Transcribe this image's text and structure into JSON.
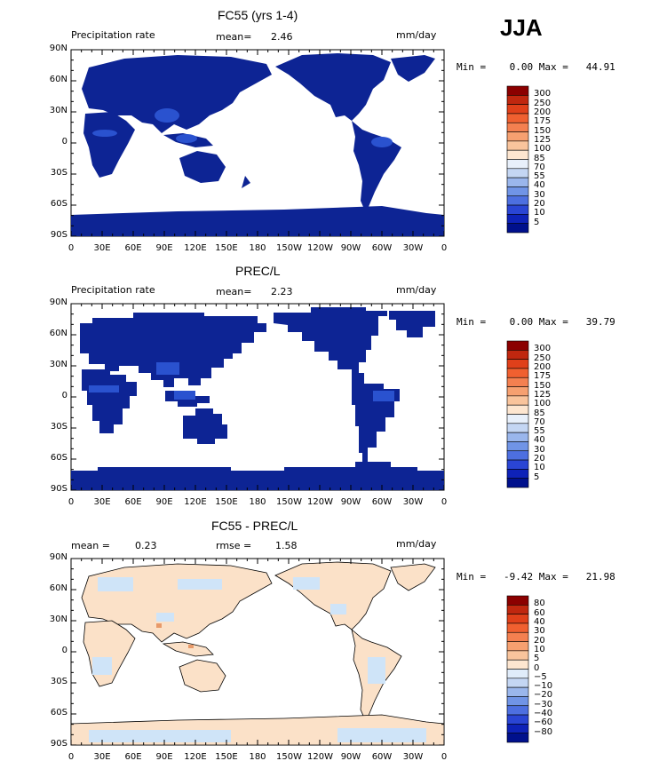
{
  "season": "JJA",
  "lon_labels": [
    "0",
    "30E",
    "60E",
    "90E",
    "120E",
    "150E",
    "180",
    "150W",
    "120W",
    "90W",
    "60W",
    "30W",
    "0"
  ],
  "lat_labels": [
    "90N",
    "60N",
    "30N",
    "0",
    "30S",
    "60S",
    "90S"
  ],
  "colors": {
    "ocean": "#ffffff",
    "land_low": "#0a1f8f",
    "land_mid": "#1a3fb8",
    "land_high": "#2f62d9",
    "diff_pos": "#fbe1c8",
    "diff_neg": "#cfe4f8",
    "diff_strong": "#e8a070"
  },
  "panels": [
    {
      "title": "FC55 (yrs 1-4)",
      "left_label": "Precipitation rate",
      "stat1_label": "mean=",
      "stat1_value": "2.46",
      "stat2_label": "",
      "stat2_value": "",
      "units": "mm/day",
      "minmax": "Min =    0.00 Max =   44.91",
      "colorbar": {
        "labels": [
          "300",
          "250",
          "200",
          "175",
          "150",
          "125",
          "100",
          "85",
          "70",
          "55",
          "40",
          "30",
          "20",
          "10",
          "5"
        ],
        "colors": [
          "#8b0000",
          "#c0270f",
          "#e0401a",
          "#f06030",
          "#f48050",
          "#f6a070",
          "#f9c49c",
          "#fde6d0",
          "#e8f0fb",
          "#c4d6f3",
          "#9ab6ec",
          "#7094e6",
          "#4d6fe0",
          "#2a45d4",
          "#0e22b8",
          "#00108c"
        ]
      }
    },
    {
      "title": "PREC/L",
      "left_label": "Precipitation rate",
      "stat1_label": "mean=",
      "stat1_value": "2.23",
      "stat2_label": "",
      "stat2_value": "",
      "units": "mm/day",
      "minmax": "Min =    0.00 Max =   39.79",
      "colorbar": {
        "labels": [
          "300",
          "250",
          "200",
          "175",
          "150",
          "125",
          "100",
          "85",
          "70",
          "55",
          "40",
          "30",
          "20",
          "10",
          "5"
        ],
        "colors": [
          "#8b0000",
          "#c0270f",
          "#e0401a",
          "#f06030",
          "#f48050",
          "#f6a070",
          "#f9c49c",
          "#fde6d0",
          "#e8f0fb",
          "#c4d6f3",
          "#9ab6ec",
          "#7094e6",
          "#4d6fe0",
          "#2a45d4",
          "#0e22b8",
          "#00108c"
        ]
      }
    },
    {
      "title": "FC55 - PREC/L",
      "left_label": "",
      "stat1_label": "mean =",
      "stat1_value": "0.23",
      "stat2_label": "rmse =",
      "stat2_value": "1.58",
      "units": "mm/day",
      "minmax": "Min =   -9.42 Max =   21.98",
      "colorbar": {
        "labels": [
          "80",
          "60",
          "40",
          "30",
          "20",
          "10",
          "5",
          "0",
          "−5",
          "−10",
          "−20",
          "−30",
          "−40",
          "−60",
          "−80"
        ],
        "colors": [
          "#8b0000",
          "#c0270f",
          "#e0401a",
          "#f06030",
          "#f48050",
          "#f6a070",
          "#f9c49c",
          "#fde6d0",
          "#e0ecfa",
          "#c4d6f3",
          "#9ab6ec",
          "#7094e6",
          "#4d6fe0",
          "#2a45d4",
          "#0e22b8",
          "#00108c"
        ]
      }
    }
  ]
}
